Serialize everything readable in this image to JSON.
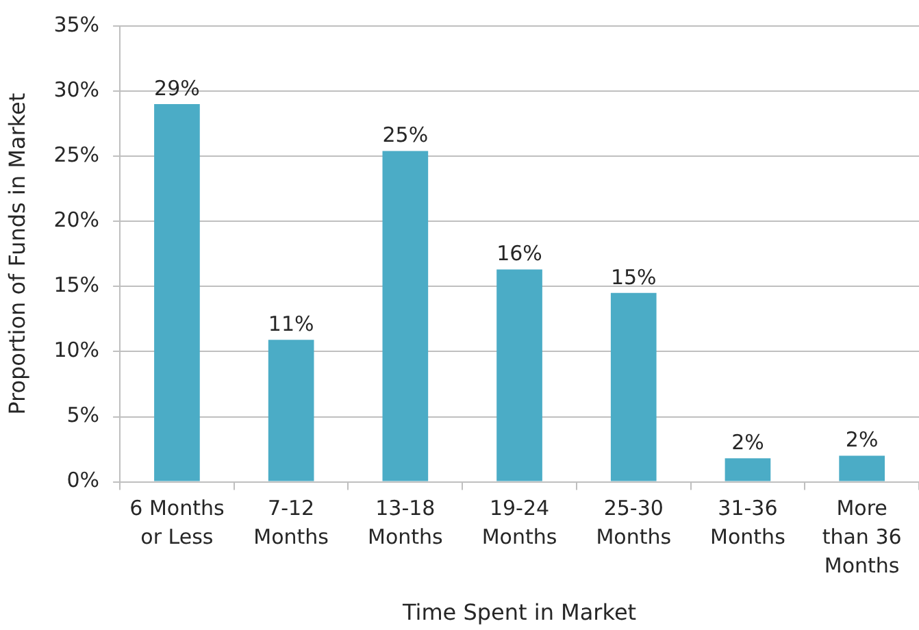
{
  "chart_data": {
    "type": "bar",
    "xlabel": "Time Spent in Market",
    "ylabel": "Proportion of Funds in Market",
    "categories": [
      "6 Months or Less",
      "7-12 Months",
      "13-18 Months",
      "19-24 Months",
      "25-30 Months",
      "31-36 Months",
      "More than 36 Months"
    ],
    "values": [
      29.0,
      10.9,
      25.4,
      16.3,
      14.5,
      1.8,
      2.0
    ],
    "value_labels": [
      "29%",
      "11%",
      "25%",
      "16%",
      "15%",
      "2%",
      "2%"
    ],
    "color": "#4bacc6",
    "ylim": [
      0,
      35
    ],
    "yticks": [
      {
        "value": 0,
        "label": "0%"
      },
      {
        "value": 5,
        "label": "5%"
      },
      {
        "value": 10,
        "label": "10%"
      },
      {
        "value": 15,
        "label": "15%"
      },
      {
        "value": 20,
        "label": "20%"
      },
      {
        "value": 25,
        "label": "25%"
      },
      {
        "value": 30,
        "label": "30%"
      },
      {
        "value": 35,
        "label": "35%"
      }
    ],
    "grid": "y"
  }
}
